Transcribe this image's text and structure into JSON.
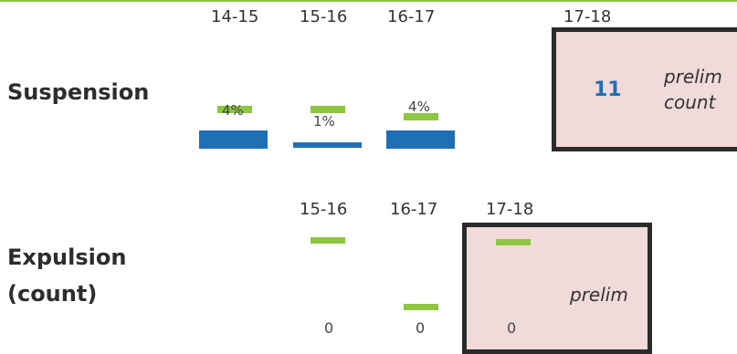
{
  "colors": {
    "bar_blue": "#1f6fb5",
    "bar_green": "#8dc63f",
    "box_fill": "#f0dada",
    "box_border": "#2b2b2b",
    "count_text": "#1f6fb5"
  },
  "chart_data": [
    {
      "type": "bar",
      "row_label": "Suspension",
      "categories": [
        "14-15",
        "15-16",
        "16-17"
      ],
      "values": [
        4,
        1,
        4
      ],
      "value_labels": [
        "4%",
        "1%",
        "4%"
      ],
      "relative_bar_widths": [
        1.0,
        1.0,
        1.0
      ],
      "relative_bar_thickness": [
        1.0,
        0.3,
        1.0
      ],
      "prelim_box": {
        "period": "17-18",
        "value": "11",
        "note_line1": "prelim",
        "note_line2": "count"
      }
    },
    {
      "type": "bar",
      "row_label_line1": "Expulsion",
      "row_label_line2": "(count)",
      "categories": [
        "15-16",
        "16-17"
      ],
      "values": [
        0,
        0
      ],
      "value_labels": [
        "0",
        "0"
      ],
      "prelim_box": {
        "period": "17-18",
        "value": "0",
        "note": "prelim"
      }
    }
  ]
}
